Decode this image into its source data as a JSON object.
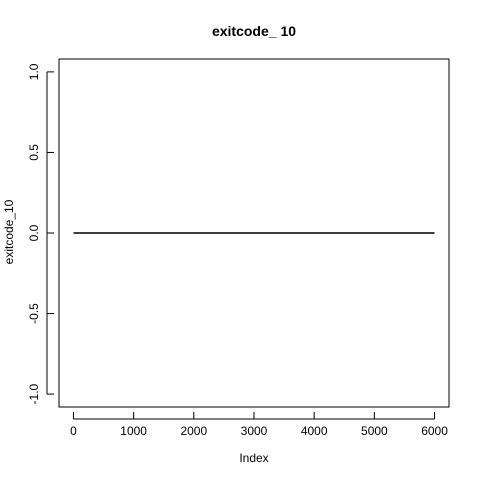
{
  "chart_data": {
    "type": "line",
    "title": "exitcode_ 10",
    "xlabel": "Index",
    "ylabel": "exitcode_10",
    "x_ticks": [
      0,
      1000,
      2000,
      3000,
      4000,
      5000,
      6000
    ],
    "y_ticks": [
      -1.0,
      -0.5,
      0.0,
      0.5,
      1.0
    ],
    "y_tick_labels": [
      "-1.0",
      "-0.5",
      "0.0",
      "0.5",
      "1.0"
    ],
    "xlim": [
      -240,
      6240
    ],
    "ylim": [
      -1.08,
      1.08
    ],
    "grid": false,
    "series": [
      {
        "x": [
          1,
          6000
        ],
        "y": [
          0,
          0
        ]
      }
    ],
    "colors": {
      "line": "#000000",
      "axis": "#000000",
      "background": "#ffffff"
    }
  }
}
